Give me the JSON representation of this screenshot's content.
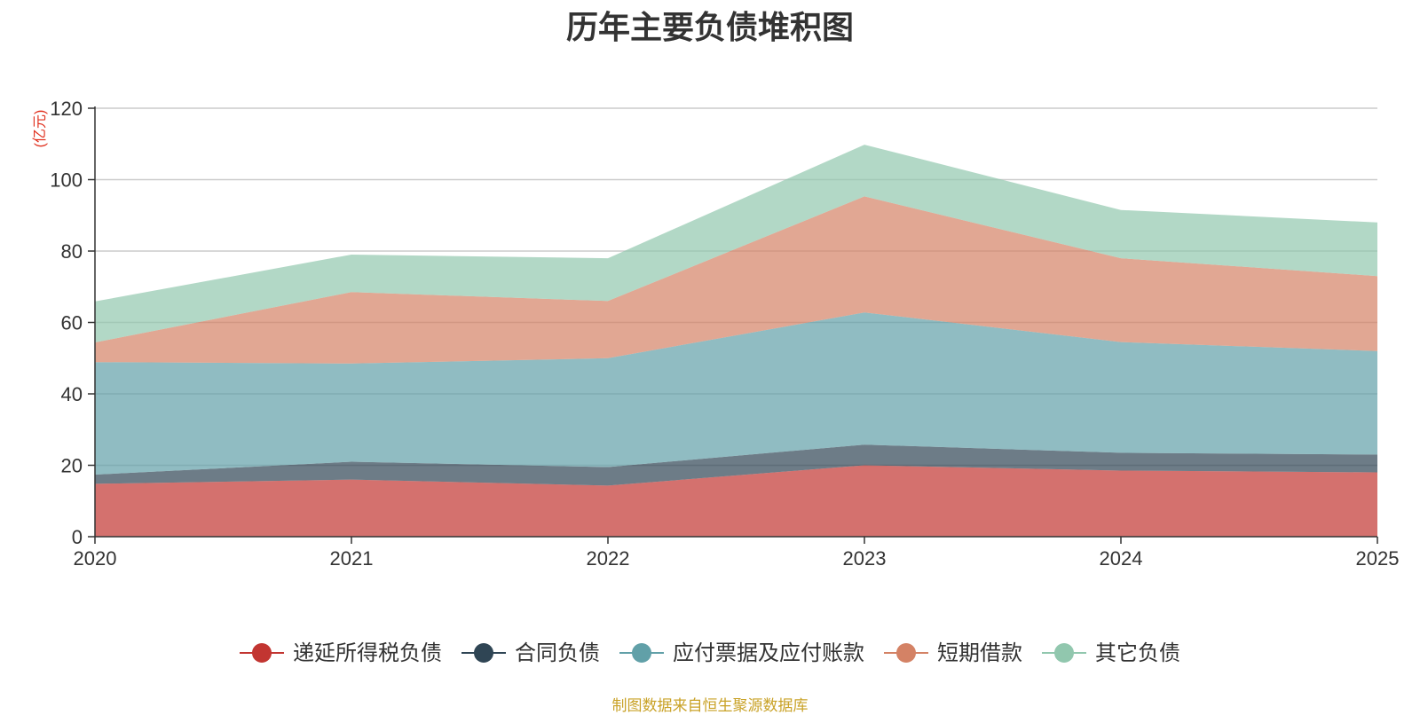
{
  "chart_data": {
    "type": "area",
    "title": "历年主要负债堆积图",
    "ylabel": "(亿元)",
    "xlabel": "",
    "ylim": [
      0,
      120
    ],
    "yticks": [
      0,
      20,
      40,
      60,
      80,
      100,
      120
    ],
    "grid": true,
    "stacked": true,
    "legend_position": "bottom",
    "categories": [
      "2020",
      "2021",
      "2022",
      "2023",
      "2024",
      "2025"
    ],
    "series": [
      {
        "name": "递延所得税负债",
        "color": "#c23531",
        "values": [
          14.8,
          16.0,
          14.3,
          20.0,
          18.5,
          18.0
        ]
      },
      {
        "name": "合同负债",
        "color": "#2f4554",
        "values": [
          2.6,
          5.0,
          5.2,
          5.8,
          5.0,
          5.0
        ]
      },
      {
        "name": "应付票据及应付账款",
        "color": "#61a0a8",
        "values": [
          31.5,
          27.5,
          30.5,
          37.0,
          31.0,
          29.0
        ]
      },
      {
        "name": "短期借款",
        "color": "#d48265",
        "values": [
          5.5,
          20.0,
          16.0,
          32.5,
          23.5,
          21.0
        ]
      },
      {
        "name": "其它负债",
        "color": "#91c7ae",
        "values": [
          11.5,
          10.5,
          12.0,
          14.5,
          13.5,
          15.0
        ]
      }
    ]
  },
  "footer": {
    "source": "制图数据来自恒生聚源数据库"
  }
}
